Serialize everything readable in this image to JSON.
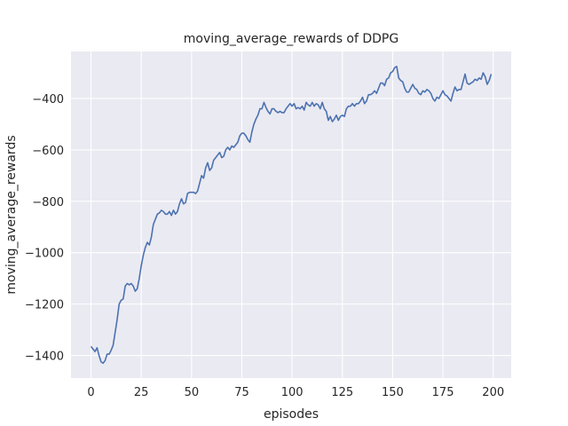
{
  "chart_data": {
    "type": "line",
    "title": "moving_average_rewards of DDPG",
    "x_label": "episodes",
    "y_label": "moving_average_rewards",
    "x": [
      0,
      1,
      2,
      3,
      4,
      5,
      6,
      7,
      8,
      9,
      10,
      11,
      12,
      13,
      14,
      15,
      16,
      17,
      18,
      19,
      20,
      21,
      22,
      23,
      24,
      25,
      26,
      27,
      28,
      29,
      30,
      31,
      32,
      33,
      34,
      35,
      36,
      37,
      38,
      39,
      40,
      41,
      42,
      43,
      44,
      45,
      46,
      47,
      48,
      49,
      50,
      51,
      52,
      53,
      54,
      55,
      56,
      57,
      58,
      59,
      60,
      61,
      62,
      63,
      64,
      65,
      66,
      67,
      68,
      69,
      70,
      71,
      72,
      73,
      74,
      75,
      76,
      77,
      78,
      79,
      80,
      81,
      82,
      83,
      84,
      85,
      86,
      87,
      88,
      89,
      90,
      91,
      92,
      93,
      94,
      95,
      96,
      97,
      98,
      99,
      100,
      101,
      102,
      103,
      104,
      105,
      106,
      107,
      108,
      109,
      110,
      111,
      112,
      113,
      114,
      115,
      116,
      117,
      118,
      119,
      120,
      121,
      122,
      123,
      124,
      125,
      126,
      127,
      128,
      129,
      130,
      131,
      132,
      133,
      134,
      135,
      136,
      137,
      138,
      139,
      140,
      141,
      142,
      143,
      144,
      145,
      146,
      147,
      148,
      149,
      150,
      151,
      152,
      153,
      154,
      155,
      156,
      157,
      158,
      159,
      160,
      161,
      162,
      163,
      164,
      165,
      166,
      167,
      168,
      169,
      170,
      171,
      172,
      173,
      174,
      175,
      176,
      177,
      178,
      179,
      180,
      181,
      182,
      183,
      184,
      185,
      186,
      187,
      188,
      189,
      190,
      191,
      192,
      193,
      194,
      195,
      196,
      197,
      198,
      199
    ],
    "series": [
      {
        "name": "moving_average_rewards",
        "color": "#4c72b0",
        "values": [
          -1365,
          -1375,
          -1385,
          -1370,
          -1400,
          -1425,
          -1430,
          -1420,
          -1395,
          -1395,
          -1380,
          -1360,
          -1310,
          -1260,
          -1200,
          -1185,
          -1180,
          -1130,
          -1120,
          -1125,
          -1120,
          -1130,
          -1150,
          -1140,
          -1100,
          -1050,
          -1010,
          -980,
          -960,
          -970,
          -940,
          -890,
          -870,
          -850,
          -845,
          -835,
          -840,
          -850,
          -850,
          -840,
          -855,
          -835,
          -850,
          -840,
          -810,
          -790,
          -810,
          -805,
          -770,
          -765,
          -765,
          -765,
          -770,
          -760,
          -730,
          -700,
          -710,
          -670,
          -650,
          -680,
          -670,
          -640,
          -630,
          -620,
          -610,
          -630,
          -625,
          -600,
          -590,
          -600,
          -585,
          -590,
          -580,
          -570,
          -545,
          -535,
          -535,
          -545,
          -560,
          -570,
          -530,
          -500,
          -480,
          -465,
          -440,
          -440,
          -415,
          -435,
          -450,
          -460,
          -440,
          -440,
          -450,
          -455,
          -450,
          -455,
          -455,
          -440,
          -430,
          -420,
          -430,
          -420,
          -440,
          -435,
          -440,
          -430,
          -445,
          -415,
          -425,
          -430,
          -415,
          -430,
          -420,
          -425,
          -440,
          -415,
          -440,
          -450,
          -485,
          -470,
          -490,
          -480,
          -465,
          -485,
          -470,
          -465,
          -470,
          -440,
          -430,
          -430,
          -420,
          -430,
          -420,
          -420,
          -410,
          -395,
          -420,
          -410,
          -385,
          -385,
          -380,
          -370,
          -380,
          -360,
          -340,
          -340,
          -350,
          -325,
          -320,
          -300,
          -295,
          -280,
          -275,
          -320,
          -330,
          -335,
          -360,
          -375,
          -375,
          -360,
          -345,
          -360,
          -365,
          -380,
          -385,
          -370,
          -375,
          -365,
          -370,
          -380,
          -400,
          -410,
          -395,
          -400,
          -385,
          -370,
          -385,
          -390,
          -400,
          -410,
          -380,
          -355,
          -370,
          -365,
          -365,
          -335,
          -305,
          -340,
          -345,
          -340,
          -335,
          -325,
          -330,
          -320,
          -325,
          -300,
          -315,
          -345,
          -330,
          -305
        ]
      }
    ],
    "xlim": [
      -9.95,
      208.95
    ],
    "ylim": [
      -1488,
      -217
    ],
    "xticks": [
      0,
      25,
      50,
      75,
      100,
      125,
      150,
      175,
      200
    ],
    "yticks": [
      {
        "value": -1400,
        "label": "−1400"
      },
      {
        "value": -1200,
        "label": "−1200"
      },
      {
        "value": -1000,
        "label": "−1000"
      },
      {
        "value": -800,
        "label": "−800"
      },
      {
        "value": -600,
        "label": "−600"
      },
      {
        "value": -400,
        "label": "−400"
      }
    ],
    "grid": true
  }
}
